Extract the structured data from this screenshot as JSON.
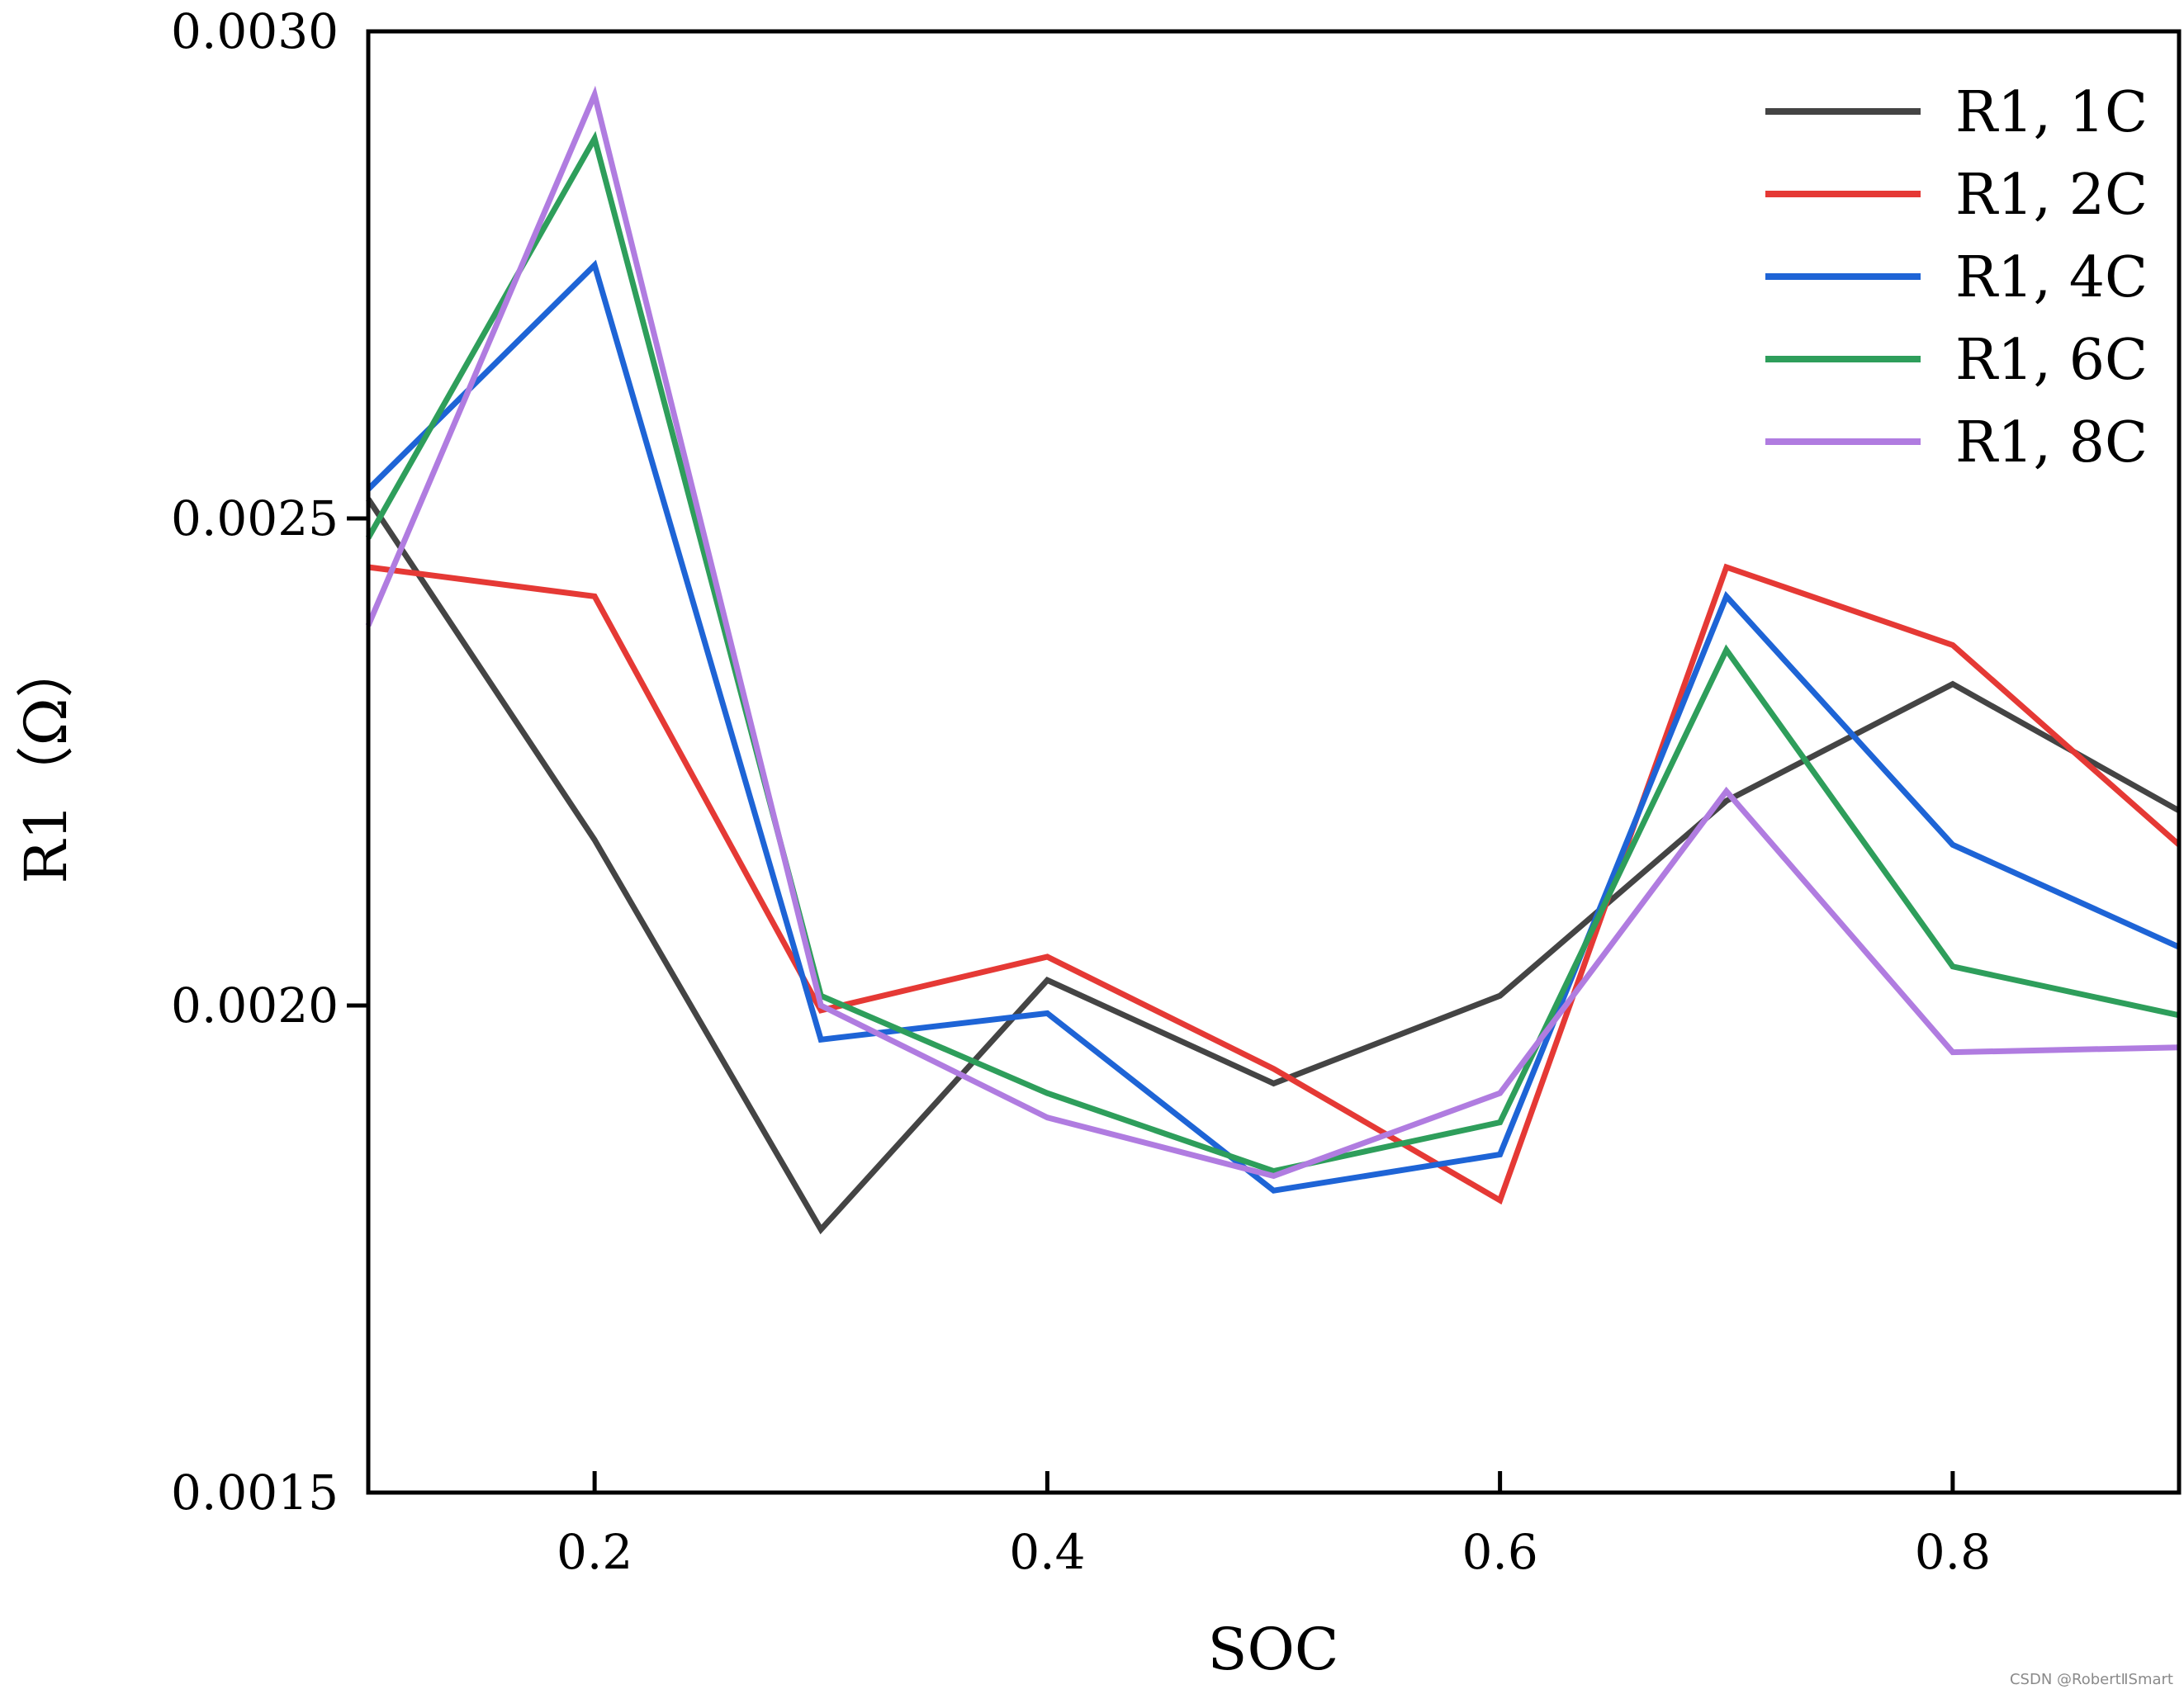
{
  "chart_data": {
    "type": "line",
    "title": "",
    "xlabel": "SOC",
    "ylabel": "R1（Ω）",
    "xlim": [
      0.1,
      0.9
    ],
    "ylim": [
      0.0015,
      0.003
    ],
    "x": [
      0.1,
      0.2,
      0.3,
      0.4,
      0.5,
      0.6,
      0.7,
      0.8,
      0.9
    ],
    "x_ticks": [
      0.2,
      0.4,
      0.6,
      0.8
    ],
    "x_tick_labels": [
      "0.2",
      "0.4",
      "0.6",
      "0.8"
    ],
    "y_ticks": [
      0.0015,
      0.002,
      0.0025,
      0.003
    ],
    "y_tick_labels": [
      "0.0015",
      "0.0020",
      "0.0025",
      "0.0030"
    ],
    "grid": false,
    "legend_position": "top-right",
    "series": [
      {
        "name": "R1, 1C",
        "color": "#444444",
        "values": [
          0.00252,
          0.00217,
          0.00177,
          0.002026,
          0.00192,
          0.00201,
          0.00221,
          0.00233,
          0.0022
        ]
      },
      {
        "name": "R1, 2C",
        "color": "#e53935",
        "values": [
          0.00245,
          0.00242,
          0.001995,
          0.00205,
          0.001935,
          0.0018,
          0.00245,
          0.00237,
          0.002165
        ]
      },
      {
        "name": "R1, 4C",
        "color": "#1e64d6",
        "values": [
          0.00253,
          0.00276,
          0.001965,
          0.001992,
          0.00181,
          0.001847,
          0.00242,
          0.002165,
          0.00206
        ]
      },
      {
        "name": "R1, 6C",
        "color": "#2e9e5b",
        "values": [
          0.00248,
          0.00289,
          0.00201,
          0.00191,
          0.00183,
          0.00188,
          0.002365,
          0.00204,
          0.00199
        ]
      },
      {
        "name": "R1, 8C",
        "color": "#b07ce0",
        "values": [
          0.00239,
          0.002935,
          0.002,
          0.001885,
          0.001825,
          0.00191,
          0.00222,
          0.001952,
          0.001957
        ]
      }
    ]
  },
  "watermark": "CSDN @RobertⅡSmart"
}
